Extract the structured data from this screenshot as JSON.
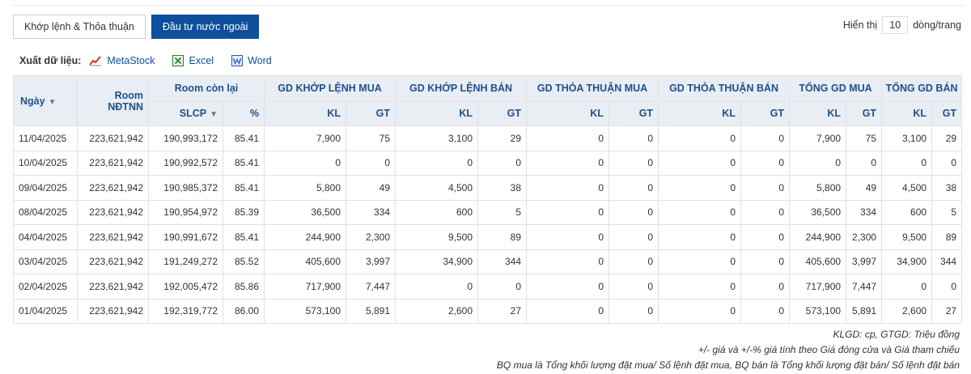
{
  "tabs": [
    {
      "label": "Khớp lệnh & Thỏa thuận",
      "active": false
    },
    {
      "label": "Đầu tư nước ngoài",
      "active": true
    }
  ],
  "display": {
    "prefix": "Hiển thị",
    "rows": "10",
    "suffix": "dòng/trang"
  },
  "export": {
    "label": "Xuất dữ liệu:",
    "items": [
      {
        "label": "MetaStock",
        "icon": "metastock-chart-icon"
      },
      {
        "label": "Excel",
        "icon": "excel-icon"
      },
      {
        "label": "Word",
        "icon": "word-icon"
      }
    ]
  },
  "table": {
    "headers": {
      "date": "Ngày",
      "room": "Room NĐTNN",
      "room_remaining": "Room còn lại",
      "slcp": "SLCP",
      "pct": "%",
      "groups": [
        "GD KHỚP LỆNH MUA",
        "GD KHỚP LỆNH BÁN",
        "GD THỎA THUẬN MUA",
        "GD THỎA THUẬN BÁN",
        "TỔNG GD MUA",
        "TỔNG GD BÁN"
      ],
      "kl": "KL",
      "gt": "GT"
    },
    "rows": [
      [
        "11/04/2025",
        "223,621,942",
        "190,993,172",
        "85.41",
        "7,900",
        "75",
        "3,100",
        "29",
        "0",
        "0",
        "0",
        "0",
        "7,900",
        "75",
        "3,100",
        "29"
      ],
      [
        "10/04/2025",
        "223,621,942",
        "190,992,572",
        "85.41",
        "0",
        "0",
        "0",
        "0",
        "0",
        "0",
        "0",
        "0",
        "0",
        "0",
        "0",
        "0"
      ],
      [
        "09/04/2025",
        "223,621,942",
        "190,985,372",
        "85.41",
        "5,800",
        "49",
        "4,500",
        "38",
        "0",
        "0",
        "0",
        "0",
        "5,800",
        "49",
        "4,500",
        "38"
      ],
      [
        "08/04/2025",
        "223,621,942",
        "190,954,972",
        "85.39",
        "36,500",
        "334",
        "600",
        "5",
        "0",
        "0",
        "0",
        "0",
        "36,500",
        "334",
        "600",
        "5"
      ],
      [
        "04/04/2025",
        "223,621,942",
        "190,991,672",
        "85.41",
        "244,900",
        "2,300",
        "9,500",
        "89",
        "0",
        "0",
        "0",
        "0",
        "244,900",
        "2,300",
        "9,500",
        "89"
      ],
      [
        "03/04/2025",
        "223,621,942",
        "191,249,272",
        "85.52",
        "405,600",
        "3,997",
        "34,900",
        "344",
        "0",
        "0",
        "0",
        "0",
        "405,600",
        "3,997",
        "34,900",
        "344"
      ],
      [
        "02/04/2025",
        "223,621,942",
        "192,005,472",
        "85.86",
        "717,900",
        "7,447",
        "0",
        "0",
        "0",
        "0",
        "0",
        "0",
        "717,900",
        "7,447",
        "0",
        "0"
      ],
      [
        "01/04/2025",
        "223,621,942",
        "192,319,772",
        "86.00",
        "573,100",
        "5,891",
        "2,600",
        "27",
        "0",
        "0",
        "0",
        "0",
        "573,100",
        "5,891",
        "2,600",
        "27"
      ]
    ]
  },
  "notes": [
    "KLGD: cp, GTGD: Triệu đồng",
    "+/- giá và +/-% giá tính theo Giá đóng cửa và Giá tham chiếu",
    "BQ mua là Tổng khối lượng đặt mua/ Số lệnh đặt mua, BQ bán là Tổng khối lượng đặt bán/ Số lệnh đặt bán"
  ],
  "colors": {
    "accent": "#0e4f9c",
    "header_bg": "#e9eef4",
    "header_text": "#1f4f8a"
  }
}
